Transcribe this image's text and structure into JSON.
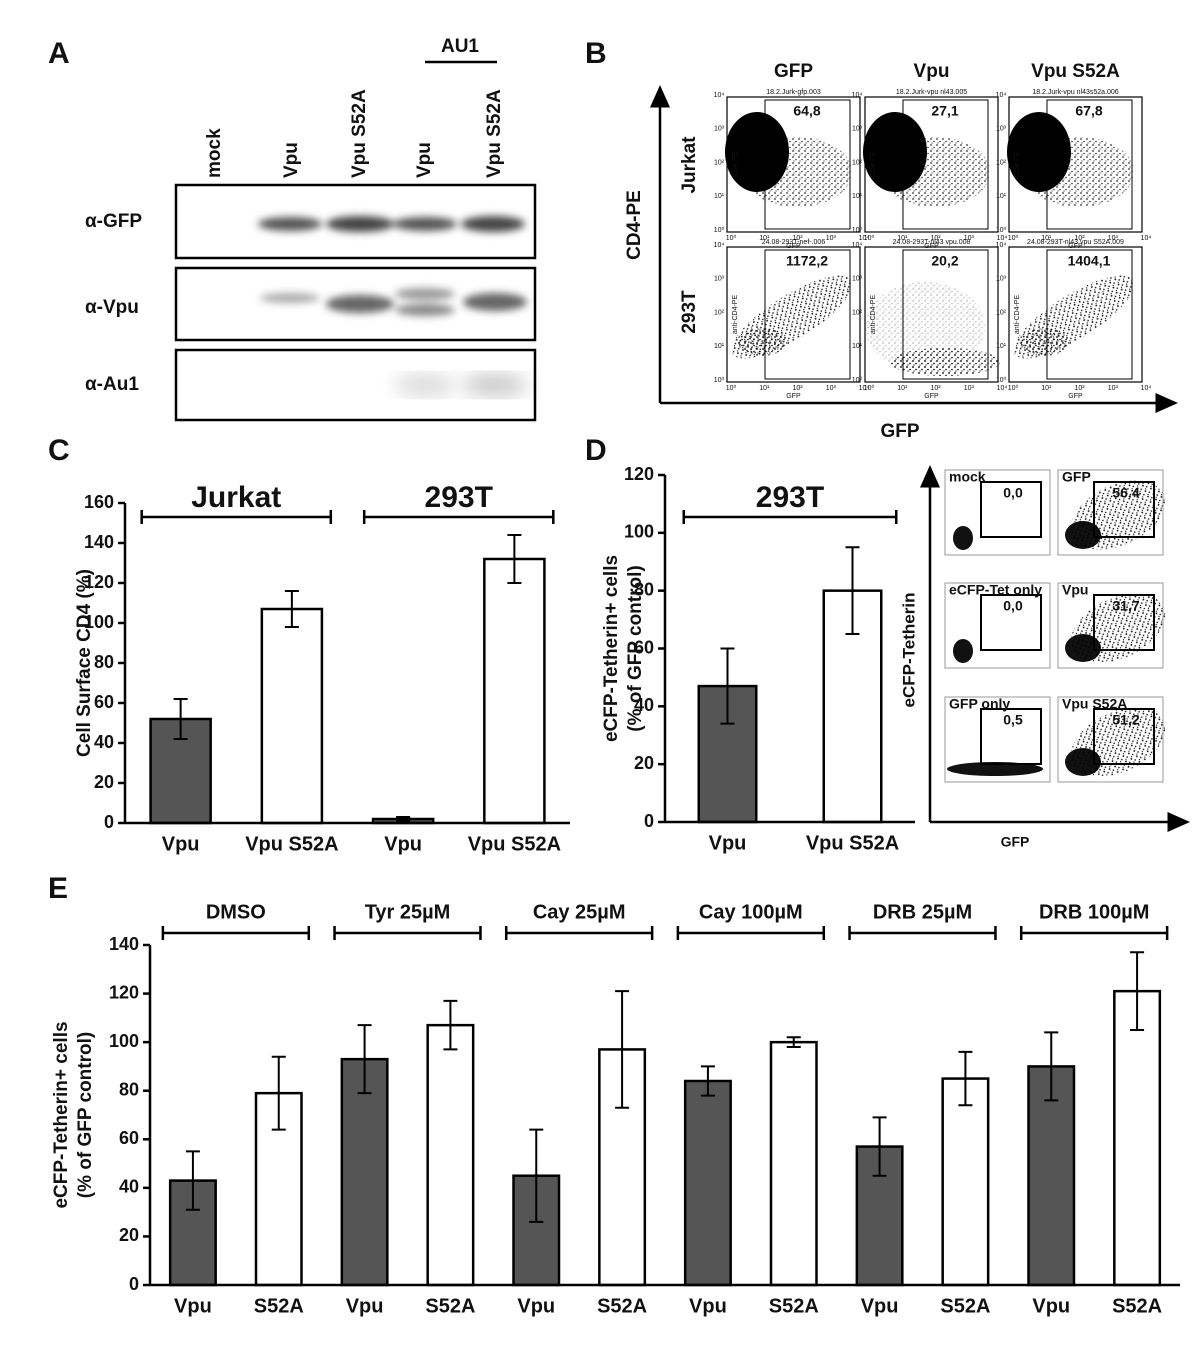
{
  "panel_labels": [
    "A",
    "B",
    "C",
    "D",
    "E"
  ],
  "blot": {
    "lanes": [
      "mock",
      "Vpu",
      "Vpu S52A",
      "Vpu",
      "Vpu S52A"
    ],
    "group": "AU1",
    "rows": [
      "α-GFP",
      "α-Vpu",
      "α-Au1"
    ]
  },
  "flow_b": {
    "columns": [
      "GFP",
      "Vpu",
      "Vpu S52A"
    ],
    "rows": [
      "Jurkat",
      "293T"
    ],
    "y_label": "CD4-PE",
    "x_label": "GFP",
    "plots": [
      {
        "file": "18.2.Jurk-gfp.003",
        "value": "64,8"
      },
      {
        "file": "18.2.Jurk-vpu nl43.005",
        "value": "27,1"
      },
      {
        "file": "18.2.Jurk-vpu nl43s52a.006",
        "value": "67,8"
      },
      {
        "file": "24.08-293T-nef-.006",
        "value": "1172,2"
      },
      {
        "file": "24.08-293T-nl43 vpu.008",
        "value": "20,2"
      },
      {
        "file": "24.08-293T-nl43 vpu S52A.009",
        "value": "1404,1"
      }
    ],
    "plot_y_labels": [
      "CD4-PE",
      "anti-CD4-PE"
    ],
    "plot_x_label": "GFP",
    "decades": [
      "10⁰",
      "10¹",
      "10²",
      "10³",
      "10⁴"
    ]
  },
  "flow_d": {
    "y_label": "eCFP-Tetherin",
    "x_label": "GFP",
    "plots": [
      {
        "name": "mock",
        "value": "0,0"
      },
      {
        "name": "GFP",
        "value": "56.4"
      },
      {
        "name": "eCFP-Tet only",
        "value": "0,0"
      },
      {
        "name": "Vpu",
        "value": "31,7"
      },
      {
        "name": "GFP only",
        "value": "0,5"
      },
      {
        "name": "Vpu S52A",
        "value": "51,2"
      }
    ]
  },
  "chart_data": [
    {
      "type": "bar",
      "ylabel": [
        "Cell Surface CD4 (%)"
      ],
      "groups": [
        "Jurkat",
        "293T"
      ],
      "categories": [
        "Vpu",
        "Vpu S52A",
        "Vpu",
        "Vpu S52A"
      ],
      "values": [
        52,
        107,
        2,
        132
      ],
      "errors": [
        10,
        9,
        1,
        12
      ],
      "colors": [
        "#555555",
        "#ffffff"
      ],
      "ylim": [
        0,
        160
      ],
      "yticks": [
        0,
        20,
        40,
        60,
        80,
        100,
        120,
        140,
        160
      ]
    },
    {
      "type": "bar",
      "ylabel": [
        "eCFP-Tetherin+ cells",
        "(% of GFP control)"
      ],
      "groups": [
        "293T"
      ],
      "categories": [
        "Vpu",
        "Vpu S52A"
      ],
      "values": [
        47,
        80
      ],
      "errors": [
        13,
        15
      ],
      "colors": [
        "#555555",
        "#ffffff"
      ],
      "ylim": [
        0,
        120
      ],
      "yticks": [
        0,
        20,
        40,
        60,
        80,
        100,
        120
      ]
    },
    {
      "type": "bar",
      "ylabel": [
        "eCFP-Tetherin+ cells",
        "(% of GFP control)"
      ],
      "groups": [
        "DMSO",
        "Tyr 25µM",
        "Cay 25µM",
        "Cay 100µM",
        "DRB 25µM",
        "DRB 100µM"
      ],
      "categories": [
        "Vpu",
        "S52A",
        "Vpu",
        "S52A",
        "Vpu",
        "S52A",
        "Vpu",
        "S52A",
        "Vpu",
        "S52A",
        "Vpu",
        "S52A"
      ],
      "values": [
        43,
        79,
        93,
        107,
        45,
        97,
        84,
        100,
        57,
        85,
        90,
        121
      ],
      "errors": [
        12,
        15,
        14,
        10,
        19,
        24,
        6,
        2,
        12,
        11,
        14,
        16
      ],
      "colors": [
        "#555555",
        "#ffffff"
      ],
      "ylim": [
        0,
        140
      ],
      "yticks": [
        0,
        20,
        40,
        60,
        80,
        100,
        120,
        140
      ]
    }
  ]
}
